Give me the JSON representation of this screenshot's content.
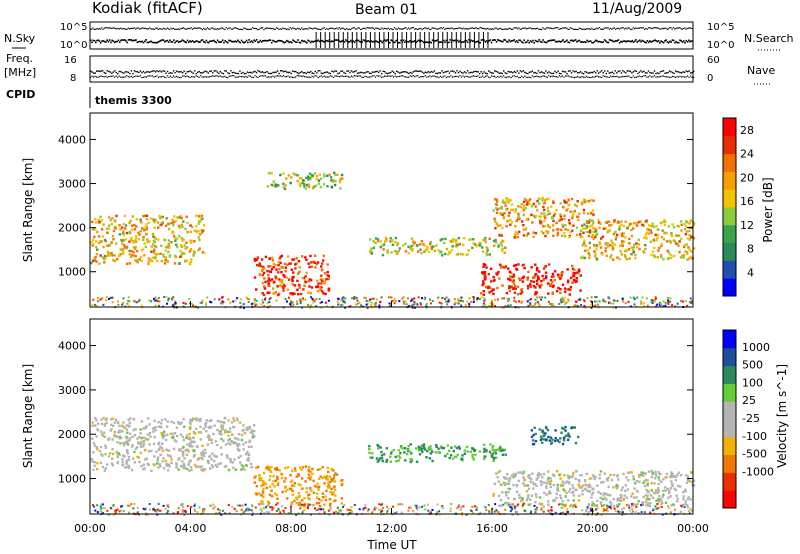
{
  "header": {
    "station": "Kodiak (fitACF)",
    "beam": "Beam 01",
    "date": "11/Aug/2009"
  },
  "panels": {
    "nsky": {
      "left_label": "N.Sky",
      "right_label": "N.Search",
      "left_ticks": [
        "10^5",
        "10^0"
      ],
      "right_ticks": [
        "10^5",
        "10^0"
      ]
    },
    "freq": {
      "left_label_1": "Freq.",
      "left_label_2": "[MHz]",
      "left_ticks": [
        "16",
        "8"
      ],
      "right_label": "Nave",
      "right_ticks": [
        "60",
        "0"
      ]
    },
    "cpid": {
      "label": "CPID",
      "value": "themis 3300"
    }
  },
  "colors": {
    "power_scale": [
      "#0000ff",
      "#2050b0",
      "#2a8a5a",
      "#3aa44a",
      "#8ccc3a",
      "#f2c400",
      "#f2a000",
      "#f27000",
      "#e43000",
      "#ff0000"
    ],
    "velocity_scale": [
      "#ff0000",
      "#e83000",
      "#f07800",
      "#f2b000",
      "#b4b4b4",
      "#b4b4b4",
      "#66cc33",
      "#2a8a5a",
      "#204f9a",
      "#0000ff"
    ]
  },
  "chart_data": [
    {
      "type": "heatmap",
      "title": "Beam 01",
      "xlabel": "Time UT",
      "ylabel": "Slant Range [km]",
      "xlim": [
        "00:00",
        "24:00"
      ],
      "ylim": [
        200,
        4600
      ],
      "x_ticks": [
        "00:00",
        "04:00",
        "08:00",
        "12:00",
        "16:00",
        "20:00",
        "00:00"
      ],
      "y_ticks": [
        1000,
        2000,
        3000,
        4000
      ],
      "colorbar": {
        "label": "Power [dB]",
        "ticks": [
          4,
          8,
          12,
          16,
          20,
          24,
          28
        ],
        "range": [
          0,
          30
        ]
      },
      "echo_regions": [
        {
          "t_start": 0.0,
          "t_end": 4.5,
          "range_min": 1200,
          "range_max": 2300,
          "power_db": 18
        },
        {
          "t_start": 6.5,
          "t_end": 9.5,
          "range_min": 500,
          "range_max": 1400,
          "power_db": 26
        },
        {
          "t_start": 7.0,
          "t_end": 10.0,
          "range_min": 2900,
          "range_max": 3300,
          "power_db": 14
        },
        {
          "t_start": 11.0,
          "t_end": 16.5,
          "range_min": 1400,
          "range_max": 1800,
          "power_db": 16
        },
        {
          "t_start": 15.5,
          "t_end": 19.5,
          "range_min": 500,
          "range_max": 1200,
          "power_db": 28
        },
        {
          "t_start": 16.0,
          "t_end": 20.0,
          "range_min": 1800,
          "range_max": 2700,
          "power_db": 20
        },
        {
          "t_start": 19.5,
          "t_end": 24.0,
          "range_min": 1300,
          "range_max": 2200,
          "power_db": 18
        }
      ]
    },
    {
      "type": "heatmap",
      "xlabel": "Time UT",
      "ylabel": "Slant Range [km]",
      "xlim": [
        "00:00",
        "24:00"
      ],
      "ylim": [
        200,
        4600
      ],
      "x_ticks": [
        "00:00",
        "04:00",
        "08:00",
        "12:00",
        "16:00",
        "20:00",
        "00:00"
      ],
      "y_ticks": [
        1000,
        2000,
        3000,
        4000
      ],
      "colorbar": {
        "label": "Velocity [m s^-1]",
        "ticks": [
          1000,
          500,
          100,
          25,
          -25,
          -100,
          -500,
          -1000
        ]
      },
      "echo_regions": [
        {
          "t_start": 0.0,
          "t_end": 6.5,
          "range_min": 1200,
          "range_max": 2400,
          "velocity": 0
        },
        {
          "t_start": 6.5,
          "t_end": 10.0,
          "range_min": 400,
          "range_max": 1300,
          "velocity": -100
        },
        {
          "t_start": 11.0,
          "t_end": 16.5,
          "range_min": 1400,
          "range_max": 1800,
          "velocity": 100
        },
        {
          "t_start": 16.0,
          "t_end": 24.0,
          "range_min": 400,
          "range_max": 1200,
          "velocity": 0
        },
        {
          "t_start": 17.5,
          "t_end": 19.5,
          "range_min": 1800,
          "range_max": 2200,
          "velocity": 500
        }
      ]
    }
  ]
}
